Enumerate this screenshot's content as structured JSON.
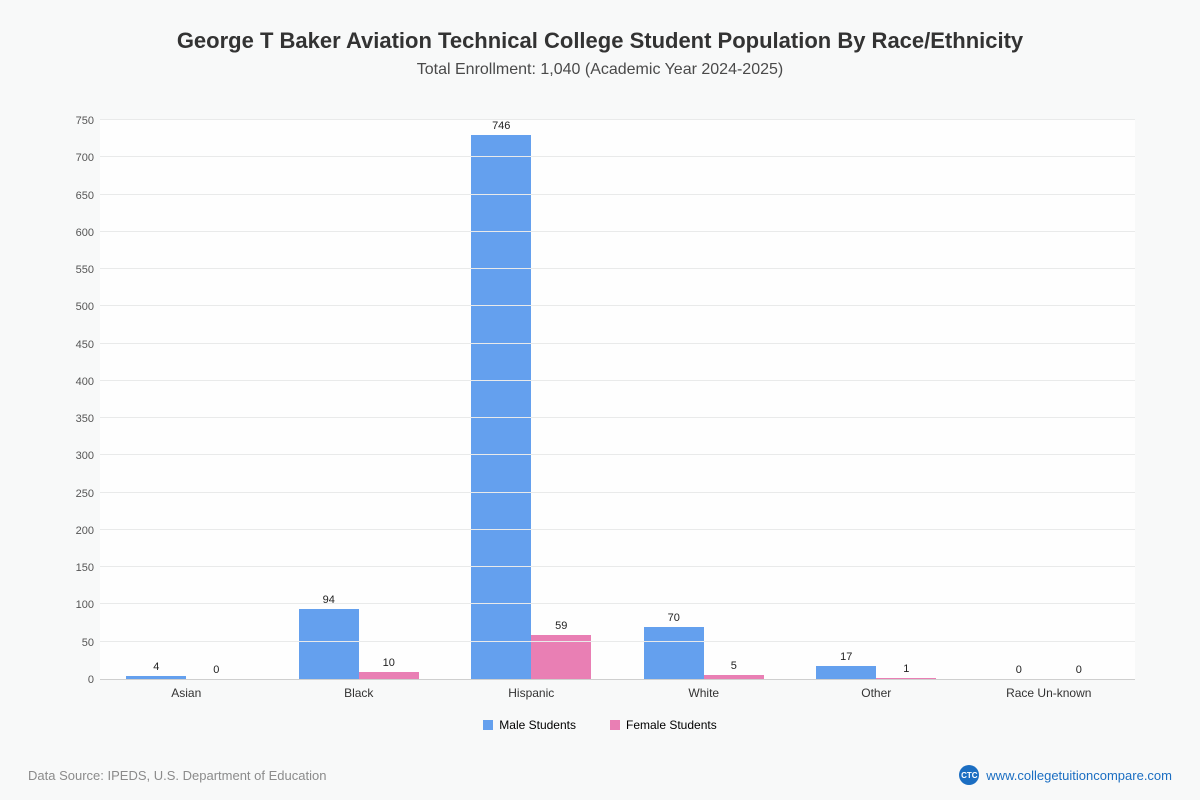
{
  "header": {
    "title": "George T Baker Aviation Technical College Student Population By Race/Ethnicity",
    "subtitle": "Total Enrollment: 1,040 (Academic Year 2024-2025)"
  },
  "chart_data": {
    "type": "bar",
    "title": "George T Baker Aviation Technical College Student Population By Race/Ethnicity",
    "subtitle": "Total Enrollment: 1,040 (Academic Year 2024-2025)",
    "categories": [
      "Asian",
      "Black",
      "Hispanic",
      "White",
      "Other",
      "Race Un-known"
    ],
    "series": [
      {
        "name": "Male Students",
        "color": "#64a0ee",
        "values": [
          4,
          94,
          746,
          70,
          17,
          0
        ]
      },
      {
        "name": "Female Students",
        "color": "#e97fb4",
        "values": [
          0,
          10,
          59,
          5,
          1,
          0
        ]
      }
    ],
    "xlabel": "",
    "ylabel": "",
    "ylim": [
      0,
      750
    ],
    "ytick_step": 50,
    "grid": true,
    "legend_position": "bottom"
  },
  "footer": {
    "data_source": "Data Source: IPEDS, U.S. Department of Education",
    "logo_text": "CTC",
    "website": "www.collegetuitioncompare.com"
  }
}
